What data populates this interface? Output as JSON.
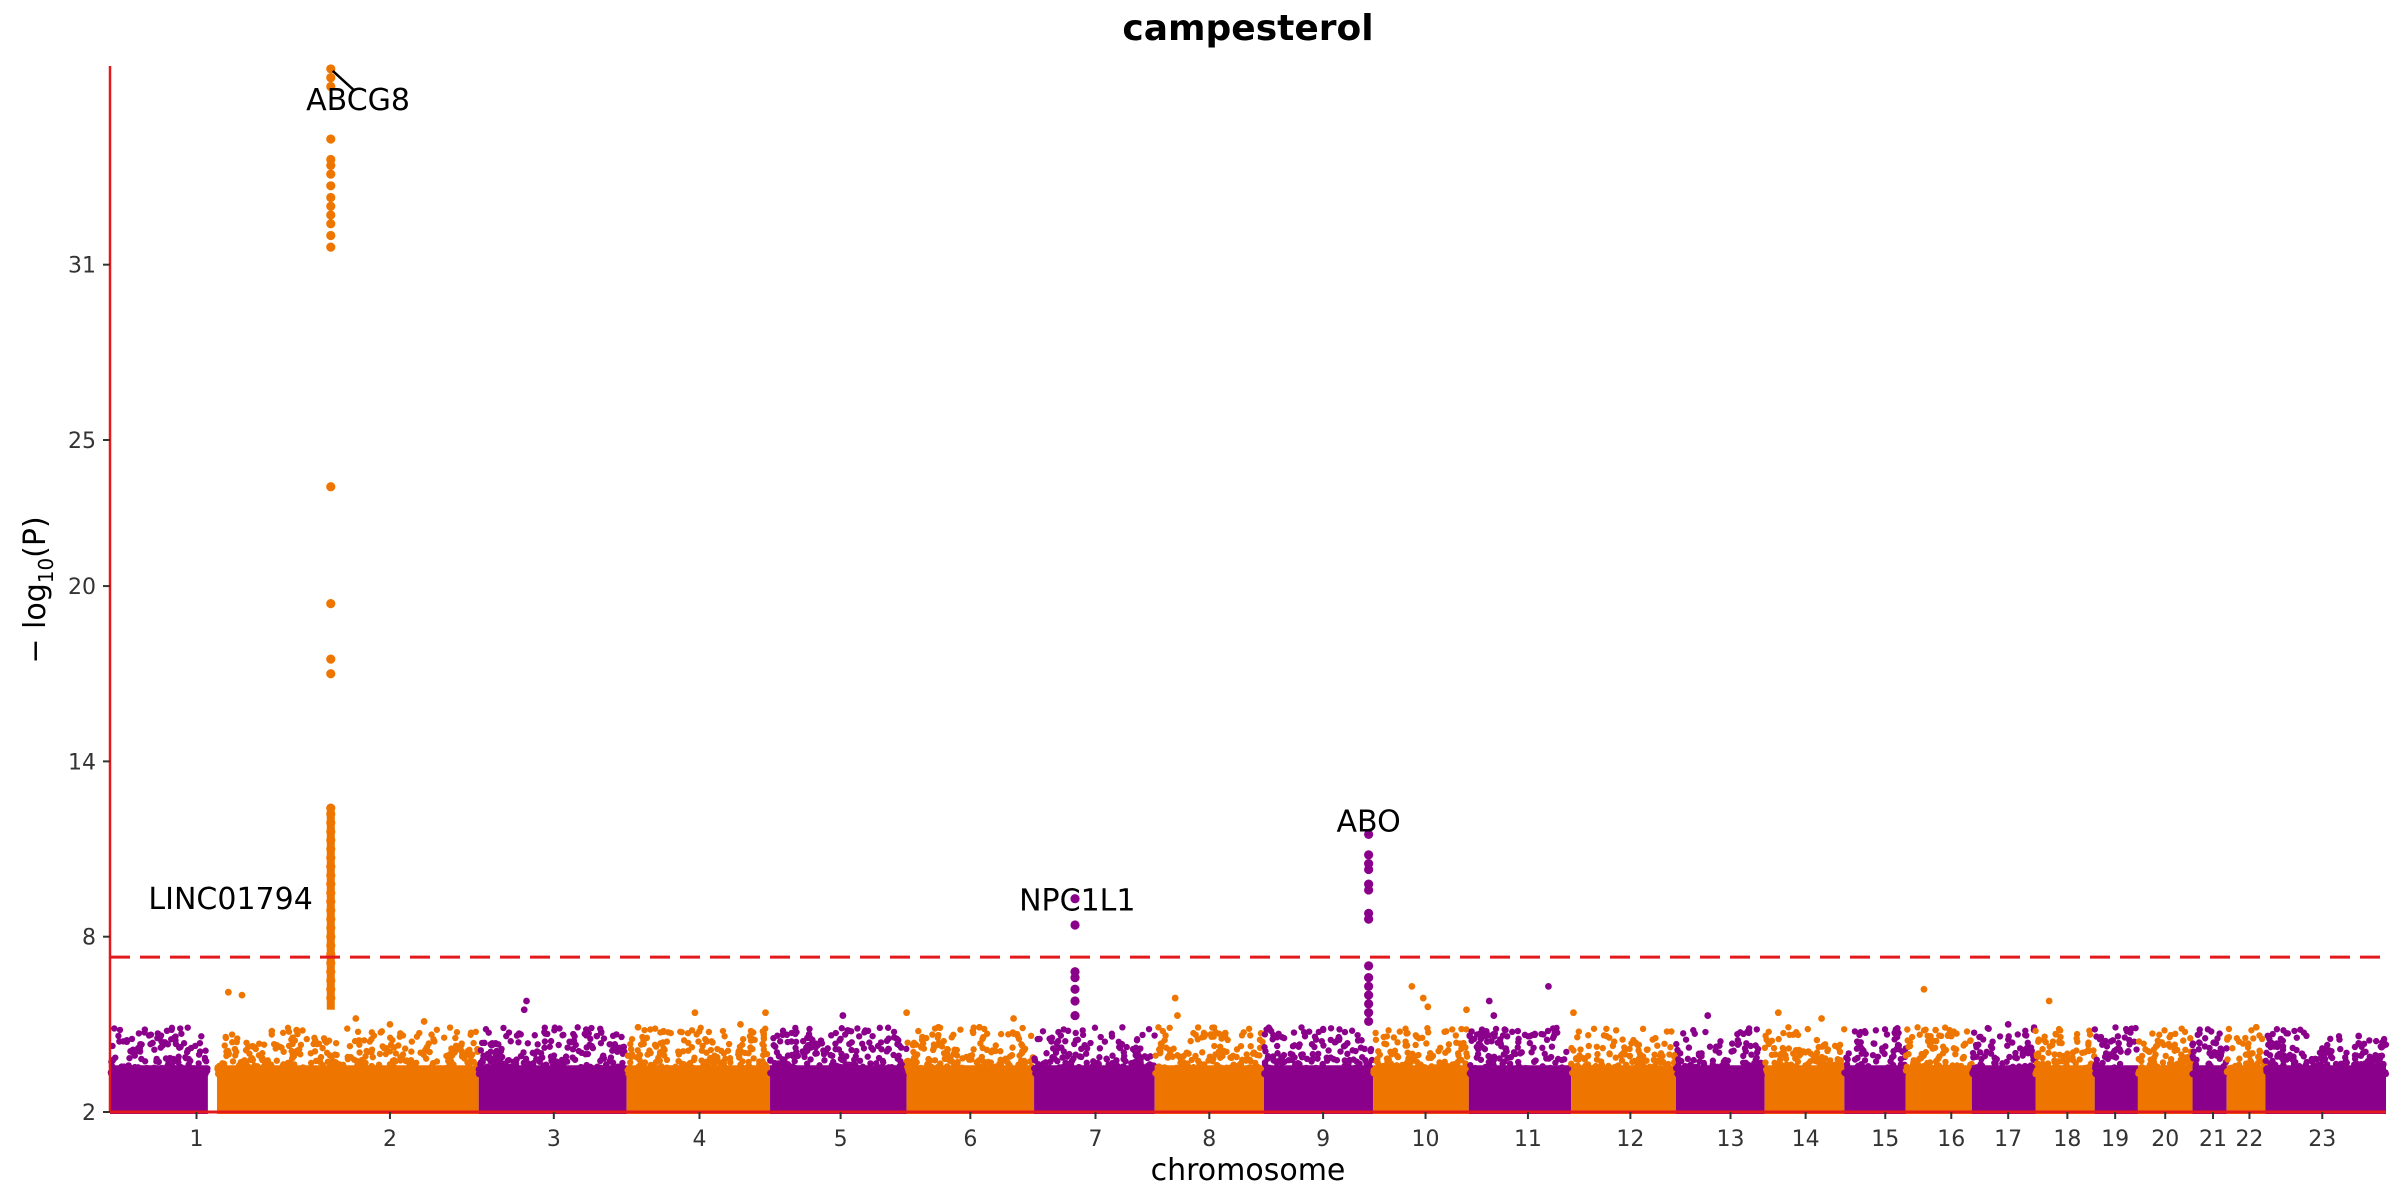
{
  "chart_data": {
    "type": "scatter",
    "title": "campesterol",
    "xlabel": "chromosome",
    "ylabel_prefix": "− log",
    "ylabel_sub": "10",
    "ylabel_suffix": "(P)",
    "ylim": [
      2,
      37.8
    ],
    "yticks": [
      2,
      8,
      14,
      20,
      25,
      31
    ],
    "threshold": 7.3,
    "colors": {
      "odd": "#8B008B",
      "even": "#EE7600",
      "axis": "#E31A1C",
      "threshold": "#E31A1C"
    },
    "chromosomes": [
      {
        "label": "1",
        "start": 0.0,
        "end": 0.043
      },
      {
        "label": "2",
        "start": 0.047,
        "end": 0.162
      },
      {
        "label": "3",
        "start": 0.162,
        "end": 0.227
      },
      {
        "label": "4",
        "start": 0.227,
        "end": 0.29
      },
      {
        "label": "5",
        "start": 0.29,
        "end": 0.35
      },
      {
        "label": "6",
        "start": 0.35,
        "end": 0.406
      },
      {
        "label": "7",
        "start": 0.406,
        "end": 0.459
      },
      {
        "label": "8",
        "start": 0.459,
        "end": 0.507
      },
      {
        "label": "9",
        "start": 0.507,
        "end": 0.555
      },
      {
        "label": "10",
        "start": 0.555,
        "end": 0.597
      },
      {
        "label": "11",
        "start": 0.597,
        "end": 0.642
      },
      {
        "label": "12",
        "start": 0.642,
        "end": 0.688
      },
      {
        "label": "13",
        "start": 0.688,
        "end": 0.727
      },
      {
        "label": "14",
        "start": 0.727,
        "end": 0.762
      },
      {
        "label": "15",
        "start": 0.762,
        "end": 0.789
      },
      {
        "label": "16",
        "start": 0.789,
        "end": 0.818
      },
      {
        "label": "17",
        "start": 0.818,
        "end": 0.846
      },
      {
        "label": "18",
        "start": 0.846,
        "end": 0.872
      },
      {
        "label": "19",
        "start": 0.872,
        "end": 0.891
      },
      {
        "label": "20",
        "start": 0.891,
        "end": 0.915
      },
      {
        "label": "21",
        "start": 0.915,
        "end": 0.93
      },
      {
        "label": "22",
        "start": 0.93,
        "end": 0.947
      },
      {
        "label": "23",
        "start": 0.947,
        "end": 1.0
      }
    ],
    "tick_positions": [
      0.038,
      0.123,
      0.195,
      0.259,
      0.321,
      0.378,
      0.433,
      0.483,
      0.533,
      0.578,
      0.623,
      0.668,
      0.712,
      0.745,
      0.78,
      0.809,
      0.834,
      0.86,
      0.881,
      0.903,
      0.924,
      0.94,
      0.972
    ],
    "peaks": [
      {
        "name": "ABCG8",
        "chrom": "2",
        "x": 0.097,
        "y": [
          37.7,
          37.4,
          37.1,
          35.3,
          34.6,
          34.4,
          34.1,
          33.7,
          33.3,
          33.0,
          32.7,
          32.4,
          32.0,
          31.6,
          23.4,
          19.4,
          17.5,
          17.0,
          12.4,
          12.2,
          11.9,
          11.6,
          11.3,
          11.0,
          10.7,
          10.4,
          10.1,
          9.8,
          9.5,
          9.2,
          8.9,
          8.6,
          8.3,
          8.0,
          7.7,
          7.4,
          7.1,
          6.8,
          6.5,
          6.2,
          5.9
        ],
        "label_dx": 0.012,
        "label_y": 36.3,
        "leader": true
      },
      {
        "name": "LINC01794",
        "chrom": "1",
        "x": 0.097,
        "y": [],
        "label_dx": -0.044,
        "label_y": 8.95,
        "leader": false
      },
      {
        "name": "NPC1L1",
        "chrom": "7",
        "x": 0.424,
        "y": [
          9.3,
          8.4,
          6.8,
          6.6,
          6.2,
          5.8,
          5.3
        ],
        "label_dx": 0.001,
        "label_y": 8.9,
        "leader": false
      },
      {
        "name": "ABO",
        "chrom": "9",
        "x": 0.553,
        "y": [
          11.5,
          10.8,
          10.5,
          10.3,
          9.8,
          9.6,
          8.8,
          8.6,
          7.0,
          6.6,
          6.3,
          6.0,
          5.7,
          5.4,
          5.1
        ],
        "label_dx": 0.0,
        "label_y": 11.6,
        "leader": false
      }
    ],
    "scattered_highs": [
      {
        "x": 0.052,
        "y": 6.1
      },
      {
        "x": 0.058,
        "y": 6.0
      },
      {
        "x": 0.082,
        "y": 4.8
      },
      {
        "x": 0.108,
        "y": 5.2
      },
      {
        "x": 0.123,
        "y": 5.0
      },
      {
        "x": 0.138,
        "y": 5.1
      },
      {
        "x": 0.183,
        "y": 5.8
      },
      {
        "x": 0.182,
        "y": 5.5
      },
      {
        "x": 0.232,
        "y": 4.9
      },
      {
        "x": 0.257,
        "y": 5.4
      },
      {
        "x": 0.277,
        "y": 5.0
      },
      {
        "x": 0.288,
        "y": 5.4
      },
      {
        "x": 0.322,
        "y": 5.3
      },
      {
        "x": 0.35,
        "y": 5.4
      },
      {
        "x": 0.364,
        "y": 4.9
      },
      {
        "x": 0.382,
        "y": 4.9
      },
      {
        "x": 0.397,
        "y": 5.2
      },
      {
        "x": 0.468,
        "y": 5.9
      },
      {
        "x": 0.469,
        "y": 5.3
      },
      {
        "x": 0.49,
        "y": 4.7
      },
      {
        "x": 0.572,
        "y": 6.3
      },
      {
        "x": 0.577,
        "y": 5.9
      },
      {
        "x": 0.579,
        "y": 5.6
      },
      {
        "x": 0.596,
        "y": 5.5
      },
      {
        "x": 0.606,
        "y": 5.8
      },
      {
        "x": 0.608,
        "y": 5.3
      },
      {
        "x": 0.632,
        "y": 6.3
      },
      {
        "x": 0.643,
        "y": 5.4
      },
      {
        "x": 0.702,
        "y": 5.3
      },
      {
        "x": 0.733,
        "y": 5.4
      },
      {
        "x": 0.752,
        "y": 5.2
      },
      {
        "x": 0.797,
        "y": 6.2
      },
      {
        "x": 0.809,
        "y": 4.6
      },
      {
        "x": 0.834,
        "y": 5.0
      },
      {
        "x": 0.852,
        "y": 5.8
      },
      {
        "x": 0.915,
        "y": 4.3
      },
      {
        "x": 0.943,
        "y": 4.9
      },
      {
        "x": 0.988,
        "y": 4.6
      },
      {
        "x": 0.975,
        "y": 4.1
      }
    ]
  }
}
